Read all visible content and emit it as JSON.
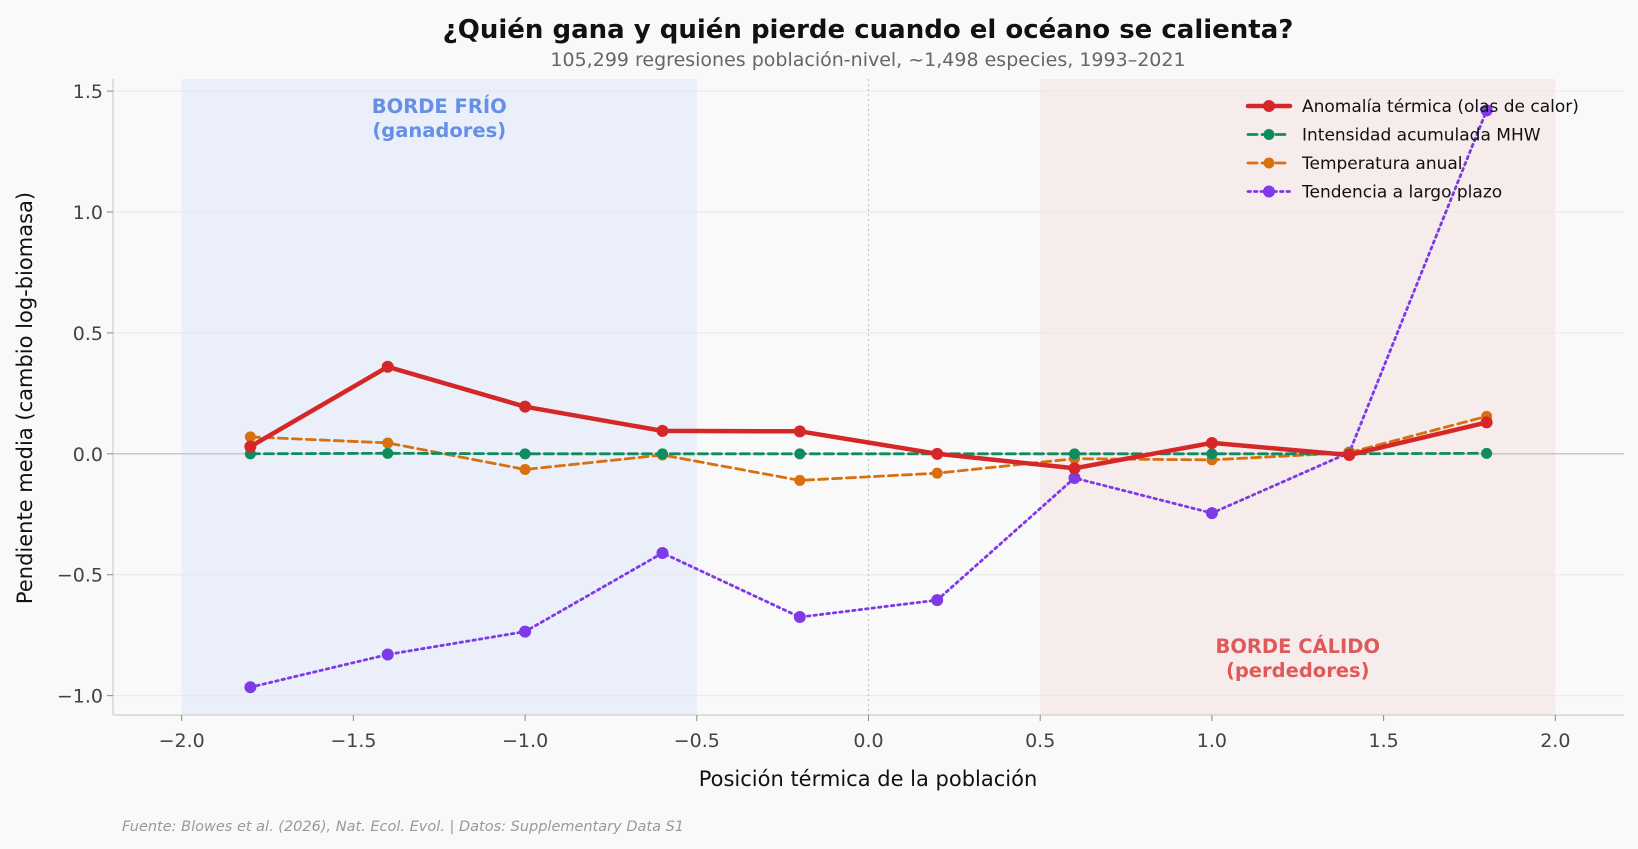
{
  "chart_data": {
    "type": "line",
    "title": "¿Quién gana y quién pierde cuando el océano se calienta?",
    "subtitle": "105,299 regresiones población-nivel, ~1,498 especies, 1993–2021",
    "xlabel": "Posición térmica de la población",
    "ylabel": "Pendiente media (cambio log-biomasa)",
    "xlim": [
      -2.2,
      2.2
    ],
    "ylim": [
      -1.08,
      1.55
    ],
    "x_ticks": [
      -2.0,
      -1.5,
      -1.0,
      -0.5,
      0.0,
      0.5,
      1.0,
      1.5,
      2.0
    ],
    "x_tick_labels": [
      "−2.0",
      "−1.5",
      "−1.0",
      "−0.5",
      "0.0",
      "0.5",
      "1.0",
      "1.5",
      "2.0"
    ],
    "y_ticks": [
      -1.0,
      -0.5,
      0.0,
      0.5,
      1.0,
      1.5
    ],
    "y_tick_labels": [
      "−1.0",
      "−0.5",
      "0.0",
      "0.5",
      "1.0",
      "1.5"
    ],
    "grid": true,
    "legend_position": "top-right",
    "x": [
      -1.8,
      -1.4,
      -1.0,
      -0.6,
      -0.2,
      0.2,
      0.6,
      1.0,
      1.4,
      1.8
    ],
    "series": [
      {
        "name": "Anomalía térmica (olas de calor)",
        "color": "#d62728",
        "style": "solid",
        "values": [
          0.03,
          0.36,
          0.195,
          0.095,
          0.093,
          0.0,
          -0.06,
          0.045,
          -0.005,
          0.13
        ]
      },
      {
        "name": "Intensidad acumulada MHW",
        "color": "#0e8c5f",
        "style": "dashed",
        "values": [
          0.0,
          0.002,
          0.0,
          0.0,
          0.0,
          0.0,
          0.0,
          0.0,
          0.0,
          0.002
        ]
      },
      {
        "name": "Temperatura anual",
        "color": "#d9700f",
        "style": "dashed",
        "values": [
          0.07,
          0.045,
          -0.065,
          -0.005,
          -0.11,
          -0.08,
          -0.02,
          -0.025,
          0.005,
          0.155
        ]
      },
      {
        "name": "Tendencia a largo plazo",
        "color": "#7e3ae6",
        "style": "dotted",
        "values": [
          -0.965,
          -0.83,
          -0.735,
          -0.41,
          -0.675,
          -0.605,
          -0.1,
          -0.245,
          0.005,
          1.42
        ]
      }
    ],
    "regions": [
      {
        "label_line1": "BORDE FRÍO",
        "label_line2": "(ganadores)",
        "x_range": [
          -2.0,
          -0.5
        ],
        "fill_color": "#e4ebf8",
        "text_color": "#6590e6"
      },
      {
        "label_line1": "BORDE CÁLIDO",
        "label_line2": "(perdedores)",
        "x_range": [
          0.5,
          2.0
        ],
        "fill_color": "#f6e7e7",
        "text_color": "#de5a5a"
      }
    ],
    "source": "Fuente: Blowes et al. (2026), Nat. Ecol. Evol. | Datos: Supplementary Data S1"
  }
}
